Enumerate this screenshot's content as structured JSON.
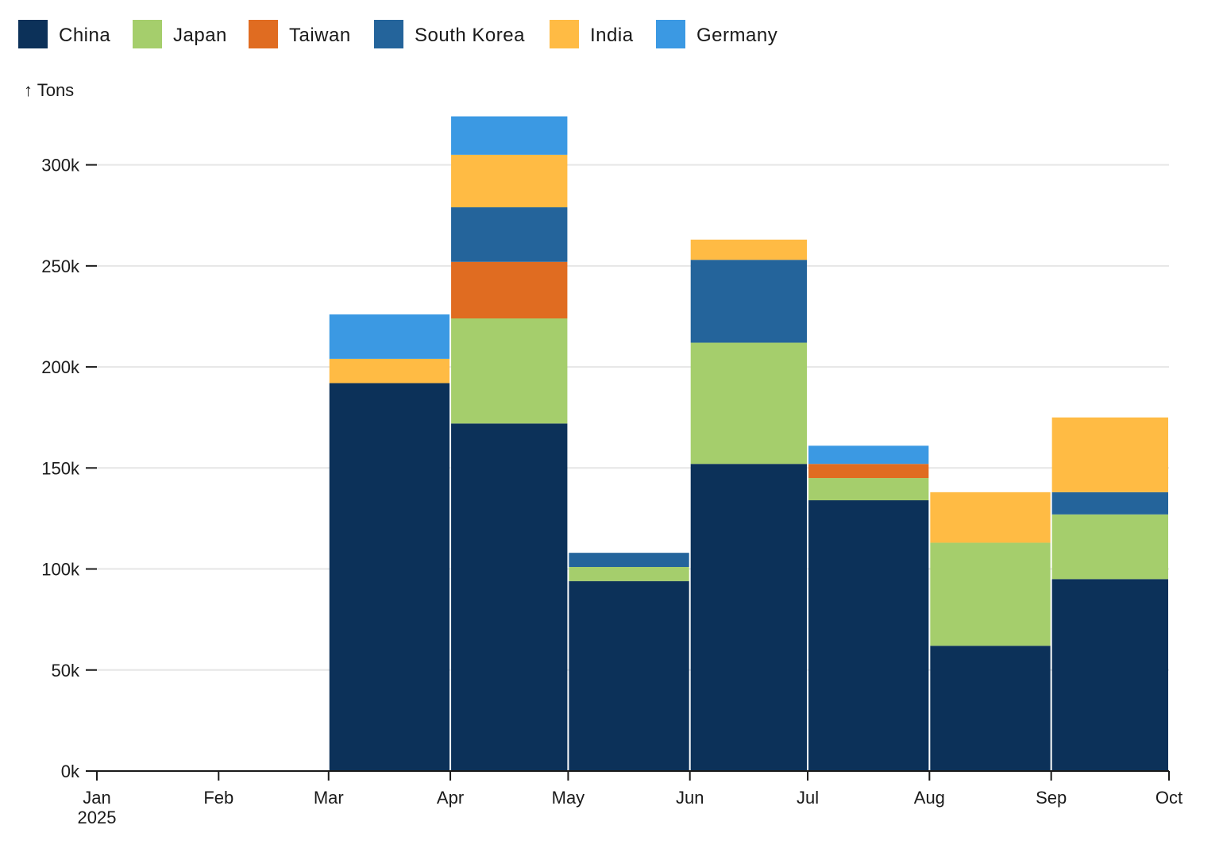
{
  "chart_data": {
    "type": "bar",
    "stacked": true,
    "ylabel": "↑ Tons",
    "ylim": [
      0,
      325000
    ],
    "y_ticks": [
      0,
      50000,
      100000,
      150000,
      200000,
      250000,
      300000
    ],
    "y_tick_labels": [
      "0k",
      "50k",
      "100k",
      "150k",
      "200k",
      "250k",
      "300k"
    ],
    "x_ticks": [
      {
        "date": "2025-01-01",
        "label": "Jan",
        "sublabel": "2025"
      },
      {
        "date": "2025-02-01",
        "label": "Feb"
      },
      {
        "date": "2025-03-01",
        "label": "Mar"
      },
      {
        "date": "2025-04-01",
        "label": "Apr"
      },
      {
        "date": "2025-05-01",
        "label": "May"
      },
      {
        "date": "2025-06-01",
        "label": "Jun"
      },
      {
        "date": "2025-07-01",
        "label": "Jul"
      },
      {
        "date": "2025-08-01",
        "label": "Aug"
      },
      {
        "date": "2025-09-01",
        "label": "Sep"
      },
      {
        "date": "2025-10-01",
        "label": "Oct"
      }
    ],
    "categories": [
      "Mar",
      "Apr",
      "May",
      "Jun",
      "Jul",
      "Aug",
      "Sep"
    ],
    "bar_periods": [
      [
        "2025-03-01",
        "2025-04-01"
      ],
      [
        "2025-04-01",
        "2025-05-01"
      ],
      [
        "2025-05-01",
        "2025-06-01"
      ],
      [
        "2025-06-01",
        "2025-07-01"
      ],
      [
        "2025-07-01",
        "2025-08-01"
      ],
      [
        "2025-08-01",
        "2025-09-01"
      ],
      [
        "2025-09-01",
        "2025-10-01"
      ]
    ],
    "legend_position": "top-left",
    "grid": true,
    "series": [
      {
        "name": "China",
        "color": "#0c3159",
        "values": [
          192000,
          172000,
          94000,
          152000,
          134000,
          62000,
          95000
        ]
      },
      {
        "name": "Japan",
        "color": "#a5ce6c",
        "values": [
          0,
          52000,
          7000,
          60000,
          11000,
          51000,
          32000
        ]
      },
      {
        "name": "Taiwan",
        "color": "#e06c21",
        "values": [
          0,
          28000,
          0,
          0,
          7000,
          0,
          0
        ]
      },
      {
        "name": "South Korea",
        "color": "#24649b",
        "values": [
          0,
          27000,
          7000,
          41000,
          0,
          0,
          11000
        ]
      },
      {
        "name": "India",
        "color": "#ffbb44",
        "values": [
          12000,
          26000,
          0,
          10000,
          0,
          25000,
          37000
        ]
      },
      {
        "name": "Germany",
        "color": "#3b99e3",
        "values": [
          22000,
          19000,
          0,
          0,
          9000,
          0,
          0
        ]
      }
    ]
  }
}
